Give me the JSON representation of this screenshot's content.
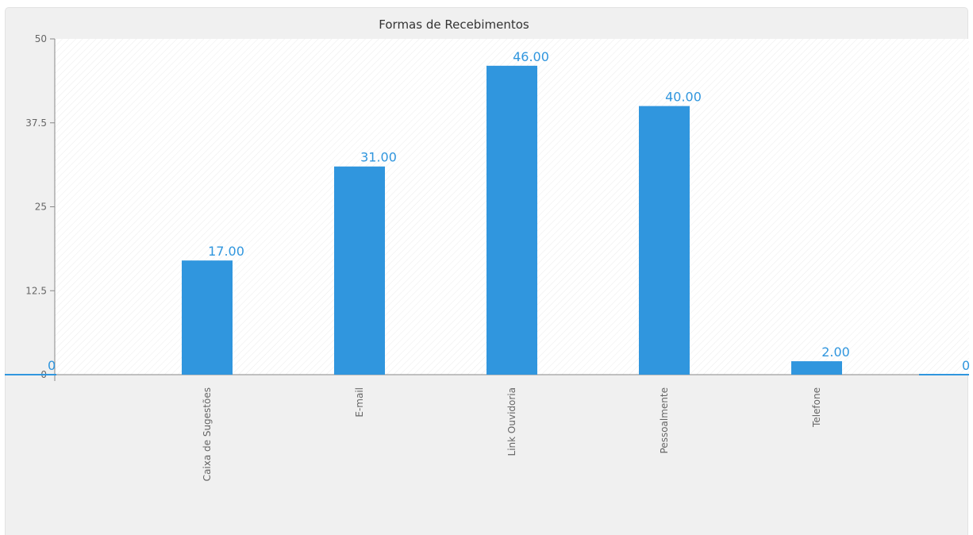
{
  "chart_data": {
    "type": "bar",
    "title": "Formas de Recebimentos",
    "categories": [
      "Caixa de Sugestões",
      "E-mail",
      "Link Ouvidoria",
      "Pessoalmente",
      "Telefone"
    ],
    "values": [
      17,
      31,
      46,
      40,
      2
    ],
    "value_labels": [
      "17.00",
      "31.00",
      "46.00",
      "40.00",
      "2.00"
    ],
    "y_ticks": [
      "0",
      "12.5",
      "25",
      "37.5",
      "50"
    ],
    "ylim": [
      0,
      50
    ],
    "edge_labels": [
      "0",
      "0"
    ],
    "xlabel": "",
    "ylabel": "",
    "bar_color": "#3096de",
    "label_color": "#3096de",
    "grid": false,
    "legend": "none"
  }
}
